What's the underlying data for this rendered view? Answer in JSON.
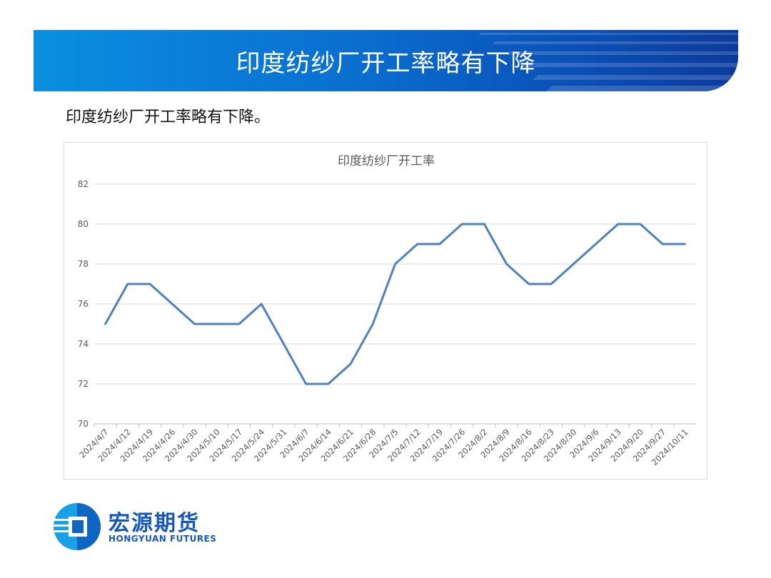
{
  "header": {
    "title": "印度纺纱厂开工率略有下降"
  },
  "subtitle": "印度纺纱厂开工率略有下降。",
  "logo": {
    "cn": "宏源期货",
    "en": "HONGYUAN FUTURES"
  },
  "colors": {
    "series": "#4f81bd",
    "banner": "#0a6fd0",
    "logo": "#1658b8",
    "grid": "#d9d9d9"
  },
  "chart_data": {
    "type": "line",
    "title": "印度纺纱厂开工率",
    "xlabel": "",
    "ylabel": "",
    "ylim": [
      70,
      82
    ],
    "yticks": [
      70,
      72,
      74,
      76,
      78,
      80,
      82
    ],
    "grid": true,
    "legend": "none",
    "x": [
      "2024/4/7",
      "2024/4/12",
      "2024/4/19",
      "2024/4/26",
      "2024/4/30",
      "2024/5/10",
      "2024/5/17",
      "2024/5/24",
      "2024/5/31",
      "2024/6/7",
      "2024/6/14",
      "2024/6/21",
      "2024/6/28",
      "2024/7/5",
      "2024/7/12",
      "2024/7/19",
      "2024/7/26",
      "2024/8/2",
      "2024/8/9",
      "2024/8/16",
      "2024/8/23",
      "2024/8/30",
      "2024/9/6",
      "2024/9/13",
      "2024/9/20",
      "2024/9/27",
      "2024/10/11"
    ],
    "series": [
      {
        "values": [
          75,
          77,
          77,
          76,
          75,
          75,
          75,
          76,
          74,
          72,
          72,
          73,
          75,
          78,
          79,
          79,
          80,
          80,
          78,
          77,
          77,
          78,
          79,
          80,
          80,
          79,
          79
        ]
      }
    ]
  }
}
